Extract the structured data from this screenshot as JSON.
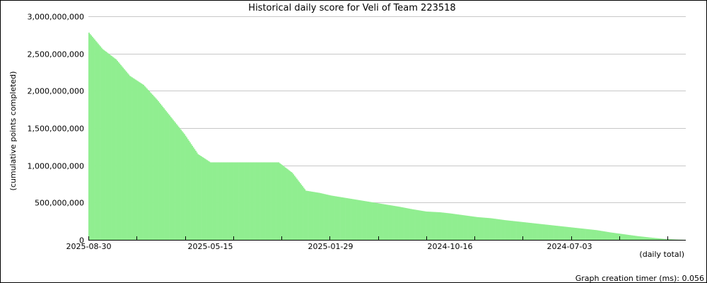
{
  "chart_data": {
    "type": "bar",
    "title": "Historical daily score for Veli of Team 223518",
    "ylabel": "(cumulative points completed)",
    "xlabel": "(daily total)",
    "footer": "Graph creation timer (ms): 0.056",
    "ylim": [
      0,
      3000000000
    ],
    "y_ticks": [
      {
        "value": 0,
        "label": "0"
      },
      {
        "value": 500000000,
        "label": "500,000,000"
      },
      {
        "value": 1000000000,
        "label": "1,000,000,000"
      },
      {
        "value": 1500000000,
        "label": "1,500,000,000"
      },
      {
        "value": 2000000000,
        "label": "2,000,000,000"
      },
      {
        "value": 2500000000,
        "label": "2,500,000,000"
      },
      {
        "value": 3000000000,
        "label": "3,000,000,000"
      }
    ],
    "x_ticks": [
      {
        "date": "2025-08-30",
        "label": "2025-08-30"
      },
      {
        "date": "2025-05-15",
        "label": "2025-05-15"
      },
      {
        "date": "2025-01-29",
        "label": "2025-01-29"
      },
      {
        "date": "2024-10-16",
        "label": "2024-10-16"
      },
      {
        "date": "2024-07-03",
        "label": "2024-07-03"
      }
    ],
    "x_range": [
      "2025-08-30",
      "2024-03-22"
    ],
    "bar_color": "#90ee90",
    "grid": true,
    "series": [
      {
        "x": [
          "2025-08-30",
          "2025-08-18",
          "2025-08-06",
          "2025-07-25",
          "2025-07-13",
          "2025-07-01",
          "2025-06-19",
          "2025-06-07",
          "2025-05-26",
          "2025-05-15",
          "2025-05-03",
          "2025-04-21",
          "2025-04-09",
          "2025-03-28",
          "2025-03-16",
          "2025-03-04",
          "2025-02-20",
          "2025-02-08",
          "2025-01-29",
          "2025-01-17",
          "2025-01-05",
          "2024-12-24",
          "2024-12-12",
          "2024-11-30",
          "2024-11-18",
          "2024-11-06",
          "2024-10-25",
          "2024-10-16",
          "2024-10-04",
          "2024-09-22",
          "2024-09-10",
          "2024-08-29",
          "2024-08-17",
          "2024-08-05",
          "2024-07-24",
          "2024-07-12",
          "2024-07-03",
          "2024-06-21",
          "2024-06-09",
          "2024-05-28",
          "2024-05-16",
          "2024-05-04",
          "2024-04-22",
          "2024-04-10",
          "2024-03-29",
          "2024-03-22"
        ],
        "y": [
          2780000000,
          2560000000,
          2420000000,
          2200000000,
          2080000000,
          1880000000,
          1650000000,
          1420000000,
          1150000000,
          1040000000,
          1040000000,
          1040000000,
          1040000000,
          1040000000,
          1040000000,
          900000000,
          660000000,
          630000000,
          595000000,
          565000000,
          535000000,
          505000000,
          475000000,
          445000000,
          410000000,
          380000000,
          370000000,
          355000000,
          330000000,
          305000000,
          290000000,
          265000000,
          245000000,
          225000000,
          205000000,
          185000000,
          170000000,
          150000000,
          130000000,
          100000000,
          75000000,
          50000000,
          30000000,
          12000000,
          3000000,
          0
        ]
      }
    ]
  }
}
